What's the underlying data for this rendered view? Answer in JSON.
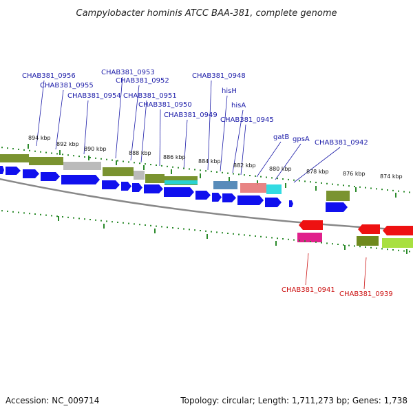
{
  "title": "Campylobacter hominis ATCC BAA-381, complete genome",
  "footer": {
    "accession": "Accession: NC_009714",
    "summary": "Topology: circular; Length: 1,711,273 bp; Genes: 1,738"
  },
  "colors": {
    "forward_label": "#1a1aa8",
    "reverse_label": "#cc1111",
    "forward_gene": "#1010ee",
    "reverse_gene": "#ee1111",
    "cog_olive": "#6f8a1e",
    "cog_gray": "#b5b5b5",
    "cog_steel": "#4a82b4",
    "cog_salmon": "#e67a7a",
    "cog_cyan": "#22d8e0",
    "cog_magenta": "#e0208c",
    "cog_lime": "#a8e040",
    "tick": "#2a8a2a",
    "backbone": "#888888"
  },
  "tick_labels": [
    "894 kbp",
    "892 kbp",
    "890 kbp",
    "888 kbp",
    "886 kbp",
    "884 kbp",
    "882 kbp",
    "880 kbp",
    "878 kbp",
    "876 kbp",
    "874 kbp"
  ],
  "forward_labels": [
    "CHAB381_0956",
    "CHAB381_0955",
    "CHAB381_0954",
    "CHAB381_0953",
    "CHAB381_0952",
    "CHAB381_0951",
    "CHAB381_0950",
    "CHAB381_0949",
    "CHAB381_0948",
    "hisH",
    "hisA",
    "CHAB381_0945",
    "gatB",
    "gpsA",
    "CHAB381_0942"
  ],
  "reverse_labels": [
    "CHAB381_0941",
    "CHAB381_0939"
  ]
}
